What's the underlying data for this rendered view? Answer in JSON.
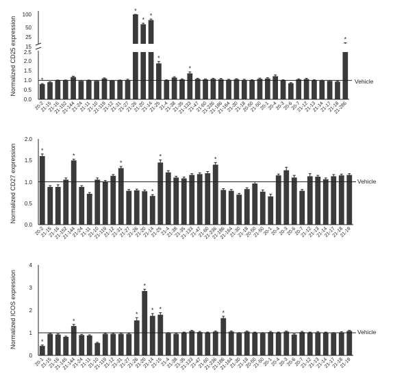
{
  "chart_data": [
    {
      "type": "bar",
      "ylabel": "Normalized CD25 expression",
      "reference_label": "Vehicle",
      "reference_value": 1.0,
      "axis_break": true,
      "yticks_lower": [
        "0.0",
        "0.5",
        "1.0",
        "1.5",
        "2.0",
        "2.5"
      ],
      "yticks_upper": [
        "15",
        "25",
        "50",
        "100"
      ],
      "ylim_lower": [
        0,
        2.5
      ],
      "categories": [
        "20-2",
        "21-15",
        "21-16",
        "21-152",
        "21-144",
        "21-24",
        "21-11",
        "21-10",
        "21-119",
        "21-12",
        "21-31",
        "21-27",
        "21-26",
        "21-20",
        "21-14",
        "21-25",
        "21-4",
        "21-38",
        "21-35",
        "21-133",
        "21-47",
        "21-60",
        "21-236",
        "21-186",
        "21-164",
        "21-30",
        "21-18",
        "20-50",
        "21-50",
        "20-1",
        "20-4",
        "20-3",
        "20-6",
        "20-7",
        "21-12",
        "21-13",
        "21-14",
        "21-17",
        "21-18",
        "21-286"
      ],
      "values": [
        0.8,
        0.9,
        1.0,
        1.0,
        1.18,
        0.97,
        1.0,
        0.97,
        1.1,
        0.98,
        1.0,
        1.02,
        100,
        62,
        78,
        1.9,
        1.0,
        1.15,
        1.05,
        1.37,
        1.08,
        1.05,
        1.08,
        1.06,
        1.03,
        1.06,
        1.02,
        1.0,
        1.08,
        1.1,
        1.22,
        1.0,
        0.85,
        1.05,
        1.07,
        1.0,
        0.98,
        0.97,
        0.93,
        18
      ],
      "errors": [
        0.03,
        0.03,
        0.02,
        0.02,
        0.04,
        0.03,
        0.02,
        0.03,
        0.03,
        0.02,
        0.02,
        0.04,
        5,
        4,
        4,
        0.1,
        0.03,
        0.04,
        0.03,
        0.08,
        0.03,
        0.03,
        0.03,
        0.04,
        0.03,
        0.03,
        0.04,
        0.03,
        0.04,
        0.04,
        0.07,
        0.03,
        0.03,
        0.03,
        0.04,
        0.03,
        0.03,
        0.03,
        0.04,
        1
      ],
      "significant": [
        0,
        39,
        12,
        13,
        14,
        15,
        19
      ]
    },
    {
      "type": "bar",
      "ylabel": "Normalized CD27 expression",
      "reference_label": "Vehicle",
      "reference_value": 1.0,
      "yticks": [
        "0.0",
        "0.5",
        "1.0",
        "1.5",
        "2.0"
      ],
      "ylim": [
        0,
        2.0
      ],
      "categories": [
        "20-2",
        "21-15",
        "21-16",
        "21-152",
        "21-144",
        "21-24",
        "21-11",
        "21-10",
        "21-119",
        "21-12",
        "21-31",
        "21-27",
        "21-26",
        "21-20",
        "21-14",
        "21-25",
        "21-4",
        "21-38",
        "21-35",
        "21-133",
        "21-47",
        "21-60",
        "21-236",
        "21-186",
        "21-164",
        "21-30",
        "21-18",
        "20-50",
        "21-50",
        "20-1",
        "20-4",
        "20-3",
        "20-6",
        "20-7",
        "21-12",
        "21-13",
        "21-14",
        "21-17",
        "21-18",
        "21-19"
      ],
      "values": [
        1.6,
        0.88,
        0.88,
        1.05,
        1.5,
        0.88,
        0.72,
        1.05,
        1.0,
        1.14,
        1.32,
        0.79,
        0.8,
        0.78,
        0.67,
        1.45,
        1.22,
        1.1,
        1.08,
        1.16,
        1.18,
        1.2,
        1.4,
        0.81,
        0.79,
        0.7,
        0.83,
        0.96,
        0.77,
        0.66,
        1.15,
        1.27,
        1.1,
        0.79,
        1.13,
        1.12,
        1.06,
        1.13,
        1.15,
        1.16
      ],
      "errors": [
        0.05,
        0.03,
        0.05,
        0.04,
        0.03,
        0.03,
        0.03,
        0.04,
        0.03,
        0.03,
        0.04,
        0.03,
        0.03,
        0.03,
        0.03,
        0.06,
        0.04,
        0.03,
        0.03,
        0.03,
        0.03,
        0.04,
        0.05,
        0.03,
        0.03,
        0.03,
        0.03,
        0.04,
        0.04,
        0.05,
        0.03,
        0.07,
        0.05,
        0.03,
        0.06,
        0.03,
        0.03,
        0.04,
        0.03,
        0.03
      ],
      "significant": [
        0,
        4,
        10,
        14,
        15,
        22
      ]
    },
    {
      "type": "bar",
      "ylabel": "Normalized ICOS expression",
      "reference_label": "Vehicle",
      "reference_value": 1.0,
      "yticks": [
        "0",
        "1",
        "2",
        "3",
        "4"
      ],
      "ylim": [
        0,
        4
      ],
      "categories": [
        "20-1",
        "21-15",
        "21-16",
        "21-145",
        "21-144",
        "21-24",
        "21-11",
        "21-10",
        "21-119",
        "21-12",
        "21-31",
        "21-27",
        "21-26",
        "21-20",
        "21-14",
        "21-15",
        "21-4",
        "21-38",
        "21-35",
        "21-133",
        "21-47",
        "21-60",
        "21-236",
        "21-186",
        "21-164",
        "21-30",
        "21-18",
        "20-50",
        "21-50",
        "20-1",
        "20-4",
        "20-3",
        "20-6",
        "20-7",
        "21-12",
        "21-13",
        "21-14",
        "21-17",
        "21-18",
        "21-19"
      ],
      "values": [
        0.42,
        0.95,
        0.92,
        0.82,
        1.3,
        0.9,
        0.88,
        0.55,
        0.95,
        0.95,
        0.95,
        0.95,
        1.55,
        2.85,
        1.75,
        1.8,
        0.98,
        0.95,
        1.0,
        1.08,
        1.03,
        1.0,
        1.05,
        1.65,
        1.05,
        0.98,
        1.05,
        1.0,
        0.98,
        1.03,
        1.0,
        1.05,
        0.92,
        1.03,
        1.0,
        1.02,
        1.0,
        0.98,
        1.02,
        1.08
      ],
      "errors": [
        0.04,
        0.03,
        0.03,
        0.03,
        0.07,
        0.03,
        0.03,
        0.03,
        0.03,
        0.03,
        0.03,
        0.03,
        0.12,
        0.08,
        0.1,
        0.09,
        0.03,
        0.03,
        0.03,
        0.03,
        0.03,
        0.03,
        0.03,
        0.08,
        0.03,
        0.03,
        0.03,
        0.03,
        0.03,
        0.03,
        0.03,
        0.03,
        0.03,
        0.03,
        0.03,
        0.03,
        0.03,
        0.03,
        0.03,
        0.03
      ],
      "significant": [
        0,
        4,
        12,
        13,
        14,
        15,
        23
      ]
    }
  ]
}
